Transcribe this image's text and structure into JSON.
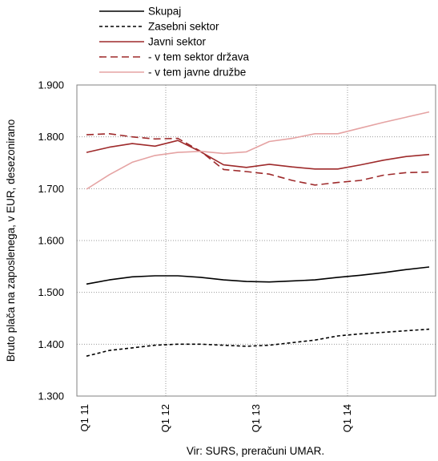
{
  "chart_data": {
    "type": "line",
    "ylabel": "Bruto plača na zaposlenega, v EUR, desezonirano",
    "caption": "Vir: SURS, preračuni UMAR.",
    "ylim": [
      1300,
      1900
    ],
    "yticks": [
      1300,
      1400,
      1500,
      1600,
      1700,
      1800,
      1900
    ],
    "ytick_labels": [
      "1.300",
      "1.400",
      "1.500",
      "1.600",
      "1.700",
      "1.800",
      "1.900"
    ],
    "xticks": [
      "Q1 11",
      "Q1 12",
      "Q1 13",
      "Q1 14"
    ],
    "x_start": "Q1 11",
    "x_count": 16,
    "grid": true,
    "legend_position": "top",
    "series": [
      {
        "name": "Skupaj",
        "color": "#000000",
        "dash": "solid",
        "values": [
          1516,
          1524,
          1530,
          1532,
          1532,
          1529,
          1524,
          1521,
          1520,
          1522,
          1524,
          1529,
          1533,
          1538,
          1544,
          1549
        ]
      },
      {
        "name": "Zasebni sektor",
        "color": "#000000",
        "dash": "dashed-small",
        "values": [
          1377,
          1388,
          1393,
          1398,
          1400,
          1400,
          1398,
          1396,
          1398,
          1403,
          1408,
          1416,
          1420,
          1423,
          1426,
          1429
        ]
      },
      {
        "name": "Javni sektor",
        "color": "#9e2a2b",
        "dash": "solid",
        "values": [
          1770,
          1780,
          1787,
          1782,
          1793,
          1771,
          1746,
          1741,
          1747,
          1742,
          1738,
          1738,
          1746,
          1755,
          1762,
          1766
        ]
      },
      {
        "name": "- v tem sektor država",
        "color": "#9e2a2b",
        "dash": "dashed-long",
        "values": [
          1804,
          1806,
          1800,
          1796,
          1797,
          1772,
          1737,
          1733,
          1728,
          1716,
          1707,
          1712,
          1716,
          1726,
          1731,
          1732
        ]
      },
      {
        "name": "- v tem javne družbe",
        "color": "#e5a3a3",
        "dash": "solid",
        "values": [
          1699,
          1727,
          1751,
          1764,
          1770,
          1772,
          1768,
          1771,
          1791,
          1797,
          1806,
          1806,
          1817,
          1828,
          1838,
          1848
        ]
      }
    ]
  }
}
